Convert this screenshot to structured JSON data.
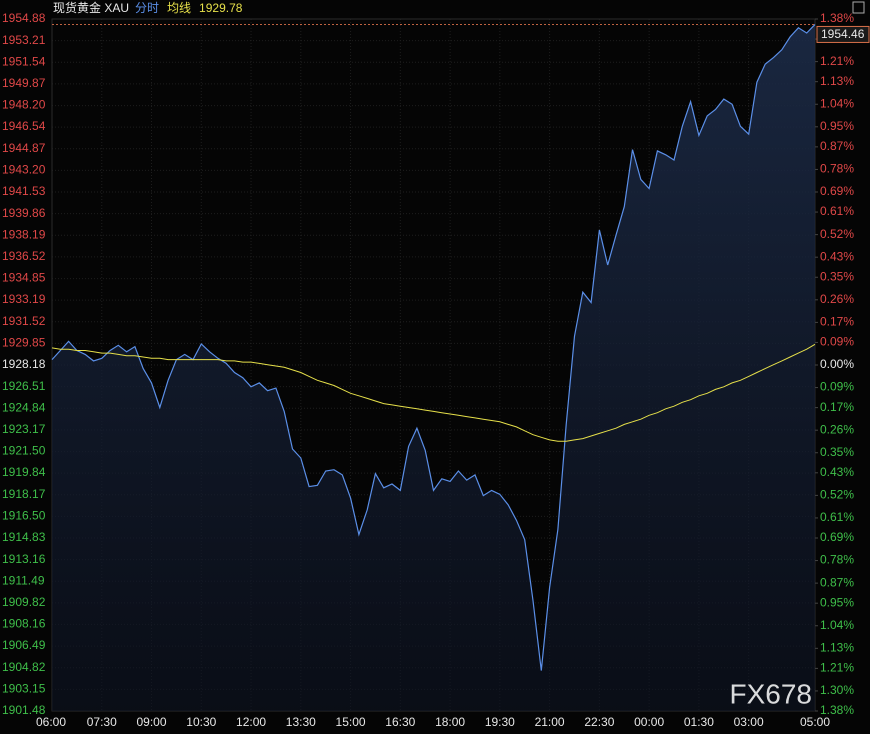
{
  "chart_data": {
    "type": "line",
    "title": "现货黄金 XAU",
    "watermark": "FX678",
    "grid": true,
    "x": [
      "06:00",
      "06:15",
      "06:30",
      "06:45",
      "07:00",
      "07:15",
      "07:30",
      "07:45",
      "08:00",
      "08:15",
      "08:30",
      "08:45",
      "09:00",
      "09:15",
      "09:30",
      "09:45",
      "10:00",
      "10:15",
      "10:30",
      "10:45",
      "11:00",
      "11:15",
      "11:30",
      "11:45",
      "12:00",
      "12:15",
      "12:30",
      "12:45",
      "13:00",
      "13:15",
      "13:30",
      "13:45",
      "14:00",
      "14:15",
      "14:30",
      "14:45",
      "15:00",
      "15:15",
      "15:30",
      "15:45",
      "16:00",
      "16:15",
      "16:30",
      "16:45",
      "17:00",
      "17:15",
      "17:30",
      "17:45",
      "18:00",
      "18:15",
      "18:30",
      "18:45",
      "19:00",
      "19:15",
      "19:30",
      "19:45",
      "20:00",
      "20:15",
      "20:30",
      "20:45",
      "21:00",
      "21:15",
      "21:30",
      "21:45",
      "22:00",
      "22:15",
      "22:30",
      "22:45",
      "23:00",
      "23:15",
      "23:30",
      "23:45",
      "00:00",
      "00:15",
      "00:30",
      "00:45",
      "01:00",
      "01:15",
      "01:30",
      "01:45",
      "02:00",
      "02:15",
      "02:30",
      "02:45",
      "03:00",
      "03:15",
      "03:30",
      "03:45",
      "04:00",
      "04:15",
      "04:30",
      "04:45",
      "05:00"
    ],
    "series": [
      {
        "name": "分时",
        "color": "#5b8fe8",
        "values": [
          1928.6,
          1929.3,
          1930.0,
          1929.3,
          1929.0,
          1928.5,
          1928.7,
          1929.3,
          1929.7,
          1929.2,
          1929.6,
          1927.9,
          1926.8,
          1924.9,
          1927.0,
          1928.6,
          1929.0,
          1928.6,
          1929.8,
          1929.2,
          1928.7,
          1928.3,
          1927.6,
          1927.2,
          1926.5,
          1926.8,
          1926.2,
          1926.4,
          1924.6,
          1921.7,
          1921.0,
          1918.8,
          1918.9,
          1920.0,
          1920.1,
          1919.7,
          1917.9,
          1915.1,
          1917.0,
          1919.8,
          1918.7,
          1919.0,
          1918.5,
          1921.9,
          1923.3,
          1921.6,
          1918.5,
          1919.4,
          1919.2,
          1920.0,
          1919.3,
          1919.7,
          1918.1,
          1918.5,
          1918.2,
          1917.4,
          1916.2,
          1914.7,
          1910.0,
          1904.6,
          1911.0,
          1915.5,
          1923.6,
          1930.4,
          1933.8,
          1933.0,
          1938.6,
          1935.9,
          1938.2,
          1940.4,
          1944.8,
          1942.5,
          1941.8,
          1944.7,
          1944.4,
          1944.0,
          1946.6,
          1948.5,
          1945.9,
          1947.4,
          1947.9,
          1948.7,
          1948.3,
          1946.6,
          1946.0,
          1950.0,
          1951.4,
          1951.9,
          1952.5,
          1953.5,
          1954.2,
          1953.8,
          1954.46
        ]
      },
      {
        "name": "均线",
        "color": "#e6e04a",
        "values": [
          1929.5,
          1929.4,
          1929.4,
          1929.3,
          1929.3,
          1929.2,
          1929.1,
          1929.1,
          1929.0,
          1928.9,
          1928.9,
          1928.8,
          1928.7,
          1928.7,
          1928.6,
          1928.6,
          1928.6,
          1928.6,
          1928.6,
          1928.6,
          1928.6,
          1928.5,
          1928.5,
          1928.4,
          1928.4,
          1928.3,
          1928.2,
          1928.1,
          1928.0,
          1927.8,
          1927.6,
          1927.3,
          1927.0,
          1926.8,
          1926.6,
          1926.3,
          1926.0,
          1925.8,
          1925.6,
          1925.4,
          1925.2,
          1925.1,
          1925.0,
          1924.9,
          1924.8,
          1924.7,
          1924.6,
          1924.5,
          1924.4,
          1924.3,
          1924.2,
          1924.1,
          1924.0,
          1923.9,
          1923.8,
          1923.6,
          1923.4,
          1923.1,
          1922.8,
          1922.6,
          1922.4,
          1922.3,
          1922.3,
          1922.4,
          1922.5,
          1922.7,
          1922.9,
          1923.1,
          1923.3,
          1923.6,
          1923.8,
          1924.0,
          1924.3,
          1924.5,
          1924.8,
          1925.0,
          1925.3,
          1925.5,
          1925.8,
          1926.0,
          1926.3,
          1926.5,
          1926.8,
          1927.0,
          1927.3,
          1927.6,
          1927.9,
          1928.2,
          1928.5,
          1928.8,
          1929.1,
          1929.4,
          1929.78
        ]
      }
    ],
    "xticks": [
      "06:00",
      "07:30",
      "09:00",
      "10:30",
      "12:00",
      "13:30",
      "15:00",
      "16:30",
      "18:00",
      "19:30",
      "21:00",
      "22:30",
      "00:00",
      "01:30",
      "03:00",
      "05:00"
    ],
    "ylim": [
      1901.48,
      1954.88
    ],
    "yticks": [
      1954.88,
      1953.21,
      1951.54,
      1949.87,
      {
        "value": 1948.2,
        "label": "1948.20"
      },
      1946.54,
      1944.87,
      {
        "value": 1943.2,
        "label": "1943.20"
      },
      1941.53,
      1939.86,
      1938.19,
      1936.52,
      1934.85,
      1933.19,
      1931.52,
      1929.85,
      1928.18,
      1926.51,
      1924.84,
      1923.17,
      {
        "value": 1921.5,
        "label": "1921.50"
      },
      1919.84,
      1918.17,
      {
        "value": 1916.5,
        "label": "1916.50"
      },
      1914.83,
      1913.16,
      1911.49,
      1909.82,
      1908.16,
      1906.49,
      1904.82,
      1903.15,
      1901.48
    ],
    "y2lim": [
      -1.38,
      1.38
    ],
    "y2ticks": [
      {
        "value": 1.38,
        "label": "1.38%"
      },
      {
        "value": 1.3,
        "label": "1.30%"
      },
      {
        "value": 1.21,
        "label": "1.21%"
      },
      {
        "value": 1.13,
        "label": "1.13%"
      },
      {
        "value": 1.04,
        "label": "1.04%"
      },
      {
        "value": 0.95,
        "label": "0.95%"
      },
      {
        "value": 0.87,
        "label": "0.87%"
      },
      {
        "value": 0.78,
        "label": "0.78%"
      },
      {
        "value": 0.69,
        "label": "0.69%"
      },
      {
        "value": 0.61,
        "label": "0.61%"
      },
      {
        "value": 0.52,
        "label": "0.52%"
      },
      {
        "value": 0.43,
        "label": "0.43%"
      },
      {
        "value": 0.35,
        "label": "0.35%"
      },
      {
        "value": 0.26,
        "label": "0.26%"
      },
      {
        "value": 0.17,
        "label": "0.17%"
      },
      {
        "value": 0.09,
        "label": "0.09%"
      },
      {
        "value": 0,
        "label": "0.00%"
      },
      {
        "value": -0.09,
        "label": "0.09%"
      },
      {
        "value": -0.17,
        "label": "0.17%"
      },
      {
        "value": -0.26,
        "label": "0.26%"
      },
      {
        "value": -0.35,
        "label": "0.35%"
      },
      {
        "value": -0.43,
        "label": "0.43%"
      },
      {
        "value": -0.52,
        "label": "0.52%"
      },
      {
        "value": -0.61,
        "label": "0.61%"
      },
      {
        "value": -0.69,
        "label": "0.69%"
      },
      {
        "value": -0.78,
        "label": "0.78%"
      },
      {
        "value": -0.87,
        "label": "0.87%"
      },
      {
        "value": -0.95,
        "label": "0.95%"
      },
      {
        "value": -1.04,
        "label": "1.04%"
      },
      {
        "value": -1.13,
        "label": "1.13%"
      },
      {
        "value": -1.21,
        "label": "1.21%"
      },
      {
        "value": -1.3,
        "label": "1.30%"
      },
      {
        "value": -1.38,
        "label": "1.38%"
      }
    ]
  }
}
